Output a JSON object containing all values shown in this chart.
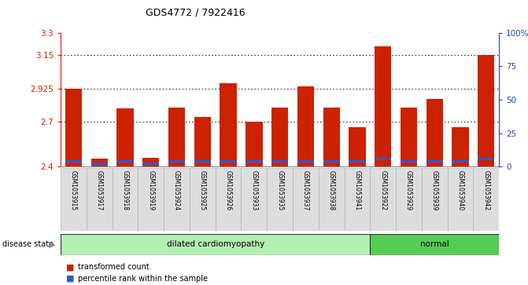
{
  "title": "GDS4772 / 7922416",
  "samples": [
    "GSM1053915",
    "GSM1053917",
    "GSM1053918",
    "GSM1053919",
    "GSM1053924",
    "GSM1053925",
    "GSM1053926",
    "GSM1053933",
    "GSM1053935",
    "GSM1053937",
    "GSM1053938",
    "GSM1053941",
    "GSM1053922",
    "GSM1053929",
    "GSM1053939",
    "GSM1053940",
    "GSM1053942"
  ],
  "red_values": [
    2.925,
    2.455,
    2.79,
    2.46,
    2.8,
    2.735,
    2.96,
    2.7,
    2.795,
    2.94,
    2.795,
    2.665,
    3.21,
    2.8,
    2.855,
    2.665,
    3.15
  ],
  "blue_values": [
    2.435,
    2.422,
    2.435,
    2.422,
    2.435,
    2.435,
    2.438,
    2.435,
    2.435,
    2.435,
    2.435,
    2.435,
    2.452,
    2.435,
    2.435,
    2.435,
    2.452
  ],
  "disease_groups": [
    {
      "label": "dilated cardiomyopathy",
      "start": 0,
      "end": 11,
      "color": "#b3efb3"
    },
    {
      "label": "normal",
      "start": 12,
      "end": 16,
      "color": "#55cc55"
    }
  ],
  "ymin": 2.4,
  "ymax": 3.3,
  "yticks_left": [
    2.4,
    2.7,
    2.925,
    3.15,
    3.3
  ],
  "ytick_labels_left": [
    "2.4",
    "2.7",
    "2.925",
    "3.15",
    "3.3"
  ],
  "right_tick_positions": [
    2.4,
    2.625,
    2.85,
    3.075,
    3.3
  ],
  "ytick_labels_right": [
    "0",
    "25",
    "50",
    "75",
    "100%"
  ],
  "grid_values": [
    2.7,
    2.925,
    3.15
  ],
  "bar_color": "#cc2200",
  "blue_color": "#3355cc",
  "bar_width": 0.65,
  "ylabel_left_color": "#cc2200",
  "ylabel_right_color": "#2244bb",
  "legend_red_label": "transformed count",
  "legend_blue_label": "percentile rank within the sample",
  "disease_label": "disease state"
}
